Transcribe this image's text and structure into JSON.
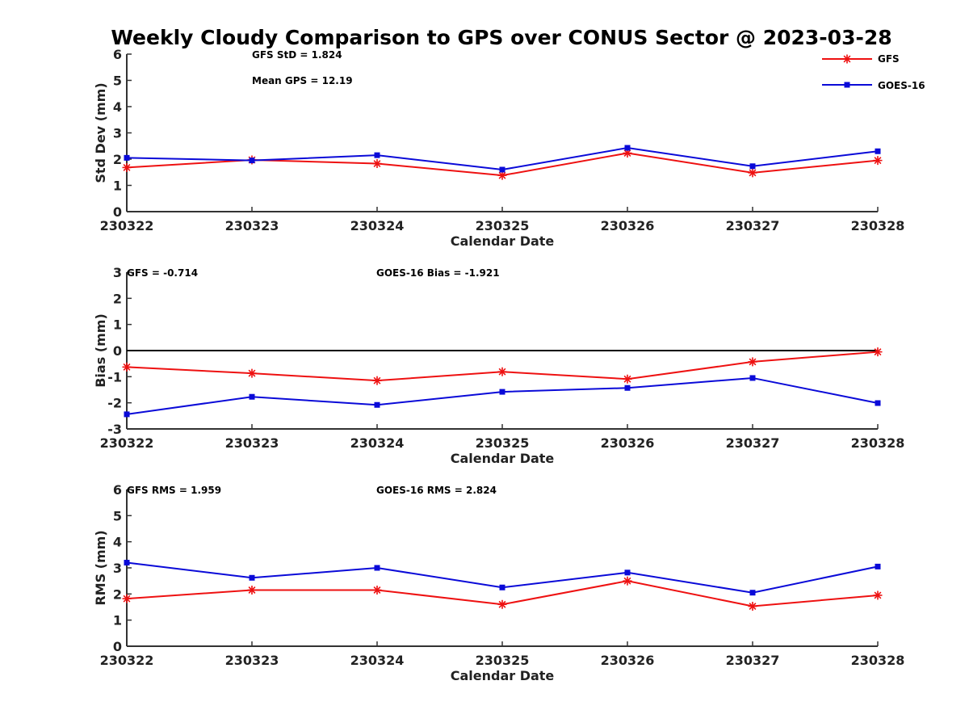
{
  "title": "Weekly Cloudy Comparison to GPS over CONUS Sector @ 2023-03-28",
  "colors": {
    "gfs": "#ee1111",
    "goes": "#0a0ad8",
    "axis": "#333333",
    "zero_line": "#000000"
  },
  "legend": {
    "placement": "top-right",
    "entries": [
      {
        "label": "GFS",
        "marker": "asterisk",
        "color": "#ee1111"
      },
      {
        "label": "GOES-16",
        "marker": "square",
        "color": "#0a0ad8"
      }
    ]
  },
  "chart_data": [
    {
      "type": "line",
      "xlabel": "Calendar Date",
      "ylabel": "Std Dev (mm)",
      "categories": [
        "230322",
        "230323",
        "230324",
        "230325",
        "230326",
        "230327",
        "230328"
      ],
      "ylim": [
        0,
        6
      ],
      "yticks": [
        0,
        1,
        2,
        3,
        4,
        5,
        6
      ],
      "grid": false,
      "annotations": [
        "GFS StD = 1.824",
        "Mean GPS = 12.19"
      ],
      "series": [
        {
          "name": "GFS",
          "marker": "asterisk",
          "values": [
            1.68,
            1.97,
            1.83,
            1.38,
            2.23,
            1.48,
            1.95
          ]
        },
        {
          "name": "GOES-16",
          "marker": "square",
          "values": [
            2.05,
            1.95,
            2.15,
            1.6,
            2.43,
            1.73,
            2.3
          ]
        }
      ]
    },
    {
      "type": "line",
      "xlabel": "Calendar Date",
      "ylabel": "Bias (mm)",
      "categories": [
        "230322",
        "230323",
        "230324",
        "230325",
        "230326",
        "230327",
        "230328"
      ],
      "ylim": [
        -3,
        3
      ],
      "yticks": [
        -3,
        -2,
        -1,
        0,
        1,
        2,
        3
      ],
      "zero_line": true,
      "grid": false,
      "annotations": [
        "GFS = -0.714",
        "GOES-16 Bias  = -1.921"
      ],
      "series": [
        {
          "name": "GFS",
          "marker": "asterisk",
          "values": [
            -0.63,
            -0.87,
            -1.15,
            -0.81,
            -1.09,
            -0.43,
            -0.05
          ]
        },
        {
          "name": "GOES-16",
          "marker": "square",
          "values": [
            -2.44,
            -1.77,
            -2.08,
            -1.58,
            -1.43,
            -1.05,
            -2.01
          ]
        }
      ]
    },
    {
      "type": "line",
      "xlabel": "Calendar Date",
      "ylabel": "RMS (mm)",
      "categories": [
        "230322",
        "230323",
        "230324",
        "230325",
        "230326",
        "230327",
        "230328"
      ],
      "ylim": [
        0,
        6
      ],
      "yticks": [
        0,
        1,
        2,
        3,
        4,
        5,
        6
      ],
      "grid": false,
      "annotations": [
        "GFS RMS = 1.959",
        "GOES-16 RMS = 2.824"
      ],
      "series": [
        {
          "name": "GFS",
          "marker": "asterisk",
          "values": [
            1.82,
            2.15,
            2.15,
            1.6,
            2.5,
            1.53,
            1.95
          ]
        },
        {
          "name": "GOES-16",
          "marker": "square",
          "values": [
            3.2,
            2.62,
            3.0,
            2.25,
            2.82,
            2.05,
            3.05
          ]
        }
      ]
    }
  ]
}
